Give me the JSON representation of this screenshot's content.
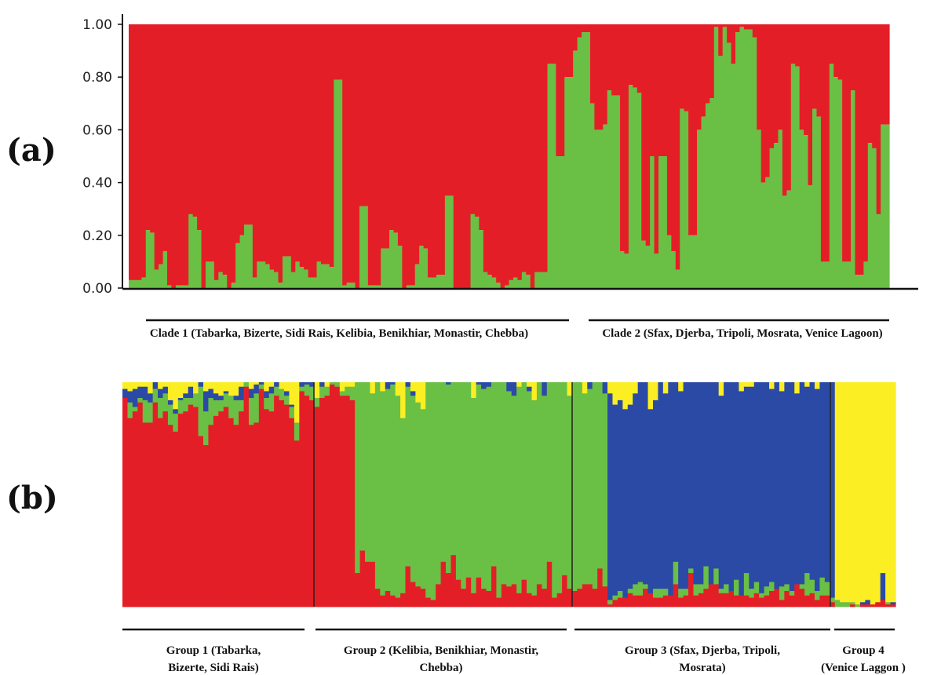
{
  "colors": {
    "red": "#e41e26",
    "green": "#6abf45",
    "blue": "#2b4aa6",
    "yellow": "#fbee23",
    "axis": "#111111"
  },
  "chart_data": [
    {
      "type": "bar",
      "stacked": true,
      "panel_label": "(a)",
      "ylim": [
        0,
        1
      ],
      "yticks": [
        "0.00",
        "0.20",
        "0.40",
        "0.60",
        "0.80",
        "1.00"
      ],
      "clusters": [
        "green",
        "red"
      ],
      "note": "per-individual green proportion (remainder red)",
      "green": [
        0.03,
        0.03,
        0.03,
        0.04,
        0.22,
        0.21,
        0.07,
        0.09,
        0.14,
        0.01,
        0.0,
        0.01,
        0.01,
        0.01,
        0.28,
        0.27,
        0.22,
        0.0,
        0.1,
        0.1,
        0.03,
        0.06,
        0.05,
        0.0,
        0.02,
        0.17,
        0.2,
        0.24,
        0.24,
        0.04,
        0.1,
        0.1,
        0.09,
        0.07,
        0.06,
        0.02,
        0.12,
        0.12,
        0.06,
        0.1,
        0.08,
        0.07,
        0.04,
        0.04,
        0.1,
        0.09,
        0.09,
        0.08,
        0.79,
        0.79,
        0.01,
        0.02,
        0.02,
        0.0,
        0.31,
        0.31,
        0.01,
        0.01,
        0.01,
        0.15,
        0.15,
        0.22,
        0.21,
        0.16,
        0.0,
        0.01,
        0.01,
        0.09,
        0.16,
        0.15,
        0.04,
        0.04,
        0.05,
        0.05,
        0.35,
        0.35,
        0.0,
        0.0,
        0.0,
        0.0,
        0.28,
        0.27,
        0.22,
        0.06,
        0.05,
        0.04,
        0.02,
        0.0,
        0.01,
        0.03,
        0.04,
        0.03,
        0.06,
        0.05,
        0.0,
        0.06,
        0.06,
        0.06,
        0.85,
        0.85,
        0.5,
        0.5,
        0.8,
        0.8,
        0.9,
        0.95,
        0.97,
        0.97,
        0.7,
        0.6,
        0.6,
        0.62,
        0.75,
        0.73,
        0.73,
        0.14,
        0.13,
        0.77,
        0.76,
        0.74,
        0.18,
        0.16,
        0.5,
        0.13,
        0.5,
        0.5,
        0.2,
        0.14,
        0.07,
        0.68,
        0.67,
        0.2,
        0.2,
        0.6,
        0.65,
        0.7,
        0.72,
        0.99,
        0.88,
        0.99,
        0.93,
        0.85,
        0.97,
        0.99,
        0.98,
        0.98,
        0.95,
        0.6,
        0.4,
        0.42,
        0.53,
        0.55,
        0.6,
        0.35,
        0.37,
        0.85,
        0.84,
        0.6,
        0.58,
        0.39,
        0.68,
        0.65,
        0.1,
        0.1,
        0.85,
        0.8,
        0.79,
        0.1,
        0.1,
        0.75,
        0.05,
        0.05,
        0.1,
        0.55,
        0.53,
        0.28,
        0.62,
        0.62
      ],
      "bracket_labels": [
        [
          "Clade 1 (Tabarka, Bizerte, Sidi Rais, Kelibia, Benikhiar, Monastir, Chebba)"
        ],
        [
          "Clade 2 (Sfax, Djerba, Tripoli, Mosrata, Venice Lagoon)"
        ]
      ]
    },
    {
      "type": "bar",
      "stacked": true,
      "panel_label": "(b)",
      "clusters": [
        "yellow",
        "blue",
        "green",
        "red"
      ],
      "note": "per-individual cluster proportions, stacked top to bottom: yellow, blue, green, red",
      "individuals": [
        [
          0.03,
          0.04,
          0.0,
          0.93
        ],
        [
          0.04,
          0.05,
          0.07,
          0.84
        ],
        [
          0.03,
          0.08,
          0.02,
          0.87
        ],
        [
          0.02,
          0.05,
          0.02,
          0.91
        ],
        [
          0.02,
          0.06,
          0.1,
          0.82
        ],
        [
          0.05,
          0.04,
          0.09,
          0.82
        ],
        [
          0.0,
          0.03,
          0.06,
          0.91
        ],
        [
          0.03,
          0.04,
          0.09,
          0.84
        ],
        [
          0.02,
          0.03,
          0.08,
          0.87
        ],
        [
          0.08,
          0.02,
          0.09,
          0.81
        ],
        [
          0.12,
          0.02,
          0.08,
          0.78
        ],
        [
          0.07,
          0.01,
          0.06,
          0.86
        ],
        [
          0.05,
          0.02,
          0.06,
          0.87
        ],
        [
          0.02,
          0.05,
          0.03,
          0.9
        ],
        [
          0.05,
          0.0,
          0.06,
          0.89
        ],
        [
          0.0,
          0.02,
          0.22,
          0.76
        ],
        [
          0.04,
          0.09,
          0.15,
          0.72
        ],
        [
          0.03,
          0.04,
          0.12,
          0.81
        ],
        [
          0.05,
          0.03,
          0.07,
          0.85
        ],
        [
          0.06,
          0.02,
          0.05,
          0.87
        ],
        [
          0.04,
          0.01,
          0.06,
          0.89
        ],
        [
          0.06,
          0.0,
          0.1,
          0.84
        ],
        [
          0.06,
          0.02,
          0.11,
          0.81
        ],
        [
          0.02,
          0.06,
          0.05,
          0.87
        ],
        [
          0.0,
          0.0,
          0.02,
          0.98
        ],
        [
          0.03,
          0.04,
          0.12,
          0.81
        ],
        [
          0.01,
          0.04,
          0.13,
          0.82
        ],
        [
          0.0,
          0.01,
          0.02,
          0.97
        ],
        [
          0.04,
          0.03,
          0.05,
          0.88
        ],
        [
          0.02,
          0.03,
          0.08,
          0.87
        ],
        [
          0.0,
          0.02,
          0.04,
          0.94
        ],
        [
          0.03,
          0.0,
          0.05,
          0.92
        ],
        [
          0.04,
          0.02,
          0.04,
          0.9
        ],
        [
          0.1,
          0.01,
          0.05,
          0.84
        ],
        [
          0.18,
          0.0,
          0.08,
          0.74
        ],
        [
          0.0,
          0.02,
          0.02,
          0.96
        ],
        [
          0.0,
          0.01,
          0.05,
          0.94
        ],
        [
          0.0,
          0.02,
          0.06,
          0.92
        ],
        [
          0.07,
          0.0,
          0.04,
          0.89
        ],
        [
          0.0,
          0.02,
          0.05,
          0.93
        ],
        [
          0.02,
          0.0,
          0.04,
          0.94
        ],
        [
          0.0,
          0.0,
          0.01,
          0.99
        ],
        [
          0.0,
          0.0,
          0.02,
          0.98
        ],
        [
          0.04,
          0.0,
          0.02,
          0.94
        ],
        [
          0.02,
          0.0,
          0.04,
          0.94
        ],
        [
          0.02,
          0.0,
          0.06,
          0.92
        ],
        [
          0.0,
          0.0,
          0.85,
          0.15
        ],
        [
          0.0,
          0.0,
          0.75,
          0.25
        ],
        [
          0.0,
          0.0,
          0.8,
          0.2
        ],
        [
          0.05,
          0.0,
          0.75,
          0.2
        ],
        [
          0.0,
          0.0,
          0.92,
          0.08
        ],
        [
          0.04,
          0.0,
          0.91,
          0.05
        ],
        [
          0.0,
          0.03,
          0.9,
          0.07
        ],
        [
          0.0,
          0.01,
          0.94,
          0.05
        ],
        [
          0.06,
          0.0,
          0.9,
          0.04
        ],
        [
          0.16,
          0.0,
          0.78,
          0.06
        ],
        [
          0.0,
          0.02,
          0.8,
          0.18
        ],
        [
          0.04,
          0.02,
          0.83,
          0.11
        ],
        [
          0.09,
          0.0,
          0.82,
          0.09
        ],
        [
          0.12,
          0.0,
          0.8,
          0.08
        ],
        [
          0.0,
          0.0,
          0.96,
          0.04
        ],
        [
          0.0,
          0.0,
          0.97,
          0.03
        ],
        [
          0.0,
          0.0,
          0.9,
          0.1
        ],
        [
          0.0,
          0.0,
          0.8,
          0.2
        ],
        [
          0.0,
          0.01,
          0.84,
          0.15
        ],
        [
          0.0,
          0.0,
          0.77,
          0.23
        ],
        [
          0.0,
          0.0,
          0.88,
          0.12
        ],
        [
          0.0,
          0.0,
          0.92,
          0.08
        ],
        [
          0.0,
          0.0,
          0.87,
          0.13
        ],
        [
          0.07,
          0.0,
          0.87,
          0.06
        ],
        [
          0.0,
          0.01,
          0.86,
          0.13
        ],
        [
          0.0,
          0.03,
          0.89,
          0.08
        ],
        [
          0.0,
          0.02,
          0.91,
          0.07
        ],
        [
          0.0,
          0.0,
          0.82,
          0.18
        ],
        [
          0.0,
          0.0,
          0.96,
          0.04
        ],
        [
          0.0,
          0.0,
          0.9,
          0.1
        ],
        [
          0.0,
          0.04,
          0.87,
          0.09
        ],
        [
          0.0,
          0.06,
          0.84,
          0.1
        ],
        [
          0.02,
          0.0,
          0.92,
          0.06
        ],
        [
          0.0,
          0.0,
          0.88,
          0.12
        ],
        [
          0.02,
          0.02,
          0.9,
          0.06
        ],
        [
          0.08,
          0.0,
          0.87,
          0.05
        ],
        [
          0.0,
          0.0,
          0.9,
          0.1
        ],
        [
          0.0,
          0.06,
          0.86,
          0.08
        ],
        [
          0.0,
          0.0,
          0.8,
          0.2
        ],
        [
          0.0,
          0.0,
          0.96,
          0.04
        ],
        [
          0.0,
          0.0,
          0.94,
          0.06
        ],
        [
          0.0,
          0.0,
          0.86,
          0.14
        ],
        [
          0.06,
          0.0,
          0.86,
          0.08
        ],
        [
          0.0,
          0.0,
          0.93,
          0.07
        ],
        [
          0.0,
          0.0,
          0.92,
          0.08
        ],
        [
          0.05,
          0.0,
          0.85,
          0.1
        ],
        [
          0.0,
          0.03,
          0.87,
          0.1
        ],
        [
          0.0,
          0.0,
          0.92,
          0.08
        ],
        [
          0.0,
          0.0,
          0.83,
          0.17
        ],
        [
          0.0,
          0.05,
          0.86,
          0.09
        ],
        [
          0.05,
          0.92,
          0.02,
          0.01
        ],
        [
          0.1,
          0.85,
          0.02,
          0.03
        ],
        [
          0.08,
          0.85,
          0.03,
          0.04
        ],
        [
          0.12,
          0.84,
          0.0,
          0.04
        ],
        [
          0.1,
          0.82,
          0.02,
          0.06
        ],
        [
          0.05,
          0.85,
          0.05,
          0.05
        ],
        [
          0.0,
          0.89,
          0.06,
          0.05
        ],
        [
          0.0,
          0.9,
          0.02,
          0.08
        ],
        [
          0.12,
          0.82,
          0.0,
          0.06
        ],
        [
          0.08,
          0.84,
          0.04,
          0.04
        ],
        [
          0.0,
          0.92,
          0.04,
          0.04
        ],
        [
          0.05,
          0.87,
          0.03,
          0.05
        ],
        [
          0.0,
          0.95,
          0.0,
          0.05
        ],
        [
          0.0,
          0.8,
          0.1,
          0.1
        ],
        [
          0.04,
          0.88,
          0.04,
          0.04
        ],
        [
          0.0,
          0.92,
          0.03,
          0.05
        ],
        [
          0.0,
          0.83,
          0.02,
          0.15
        ],
        [
          0.0,
          0.9,
          0.05,
          0.05
        ],
        [
          0.0,
          0.9,
          0.04,
          0.06
        ],
        [
          0.0,
          0.82,
          0.1,
          0.08
        ],
        [
          0.0,
          0.9,
          0.0,
          0.1
        ],
        [
          0.0,
          0.83,
          0.07,
          0.1
        ],
        [
          0.06,
          0.86,
          0.02,
          0.06
        ],
        [
          0.0,
          0.9,
          0.04,
          0.06
        ],
        [
          0.0,
          0.93,
          0.0,
          0.07
        ],
        [
          0.0,
          0.88,
          0.07,
          0.05
        ],
        [
          0.04,
          0.91,
          0.0,
          0.05
        ],
        [
          0.02,
          0.83,
          0.1,
          0.05
        ],
        [
          0.02,
          0.9,
          0.04,
          0.04
        ],
        [
          0.0,
          0.89,
          0.05,
          0.06
        ],
        [
          0.0,
          0.94,
          0.02,
          0.04
        ],
        [
          0.0,
          0.91,
          0.04,
          0.05
        ],
        [
          0.03,
          0.86,
          0.04,
          0.07
        ],
        [
          0.0,
          0.92,
          0.0,
          0.08
        ],
        [
          0.04,
          0.87,
          0.06,
          0.03
        ],
        [
          0.0,
          0.9,
          0.03,
          0.07
        ],
        [
          0.0,
          0.93,
          0.02,
          0.05
        ],
        [
          0.05,
          0.85,
          0.0,
          0.1
        ],
        [
          0.0,
          0.9,
          0.02,
          0.08
        ],
        [
          0.02,
          0.83,
          0.1,
          0.05
        ],
        [
          0.0,
          0.88,
          0.06,
          0.06
        ],
        [
          0.03,
          0.9,
          0.04,
          0.03
        ],
        [
          0.0,
          0.87,
          0.08,
          0.05
        ],
        [
          0.0,
          0.89,
          0.06,
          0.05
        ],
        [
          0.0,
          0.96,
          0.02,
          0.02
        ],
        [
          0.97,
          0.0,
          0.03,
          0.0
        ],
        [
          0.98,
          0.0,
          0.02,
          0.0
        ],
        [
          0.98,
          0.0,
          0.02,
          0.0
        ],
        [
          0.98,
          0.0,
          0.01,
          0.01
        ],
        [
          0.99,
          0.0,
          0.01,
          0.0
        ],
        [
          0.98,
          0.01,
          0.0,
          0.01
        ],
        [
          0.97,
          0.02,
          0.0,
          0.01
        ],
        [
          0.99,
          0.0,
          0.0,
          0.01
        ],
        [
          0.98,
          0.0,
          0.0,
          0.02
        ],
        [
          0.85,
          0.12,
          0.0,
          0.03
        ],
        [
          0.98,
          0.0,
          0.01,
          0.01
        ],
        [
          0.98,
          0.01,
          0.0,
          0.01
        ]
      ],
      "bracket_labels": [
        [
          "Group 1 (Tabarka,",
          "Bizerte, Sidi Rais)"
        ],
        [
          "Group 2 (Kelibia, Benikhiar, Monastir,",
          "Chebba)"
        ],
        [
          "Group 3 (Sfax, Djerba, Tripoli,",
          "Mosrata)"
        ],
        [
          "Group 4",
          "(Venice Laggon )"
        ]
      ]
    }
  ]
}
